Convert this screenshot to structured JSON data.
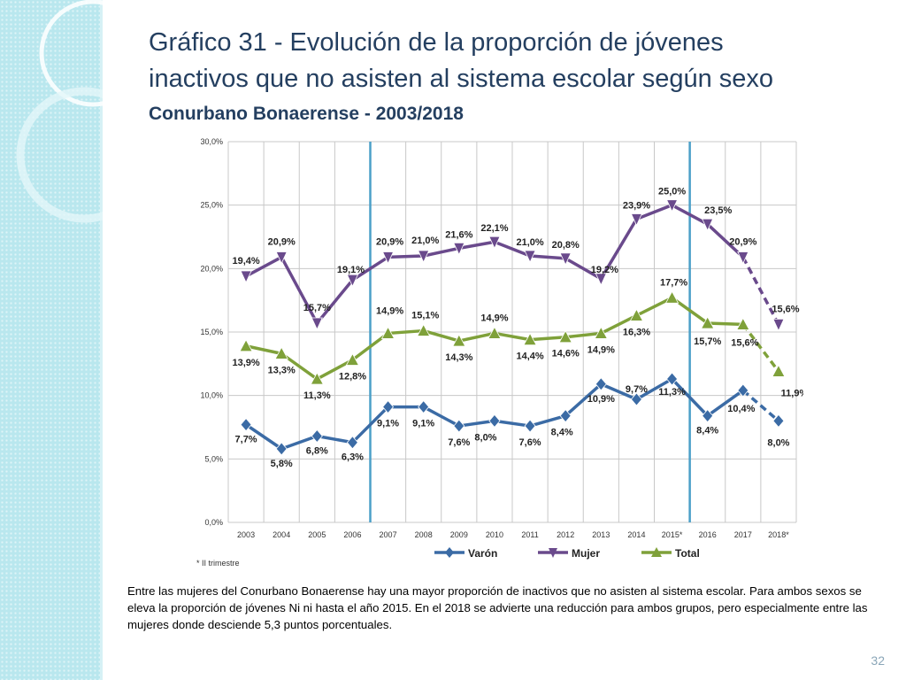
{
  "slide": {
    "title_line1": "Gráfico 31 - Evolución de la proporción de jóvenes",
    "title_line2": "inactivos que no asisten al sistema escolar según sexo",
    "subtitle": "Conurbano Bonaerense - 2003/2018",
    "footnote": "* II trimestre",
    "caption": "Entre las mujeres del Conurbano Bonaerense hay una mayor proporción de inactivos que no asisten al sistema escolar. Para ambos sexos se eleva la proporción de jóvenes Ni ni hasta el año 2015. En el 2018 se advierte una reducción para ambos grupos, pero especialmente entre las mujeres donde desciende 5,3 puntos porcentuales.",
    "page_number": "32"
  },
  "colors": {
    "title": "#243f60",
    "varon": "#3b6ba5",
    "mujer": "#6a4a8c",
    "total": "#7fa13a",
    "divider": "#4a9fc8",
    "grid": "#c8c8c8",
    "sidebar": "#b9e7ee"
  },
  "chart_data": {
    "type": "line",
    "title": "",
    "xlabel": "",
    "ylabel": "",
    "categories": [
      "2003",
      "2004",
      "2005",
      "2006",
      "2007",
      "2008",
      "2009",
      "2010",
      "2011",
      "2012",
      "2013",
      "2014",
      "2015*",
      "2016",
      "2017",
      "2018*"
    ],
    "y_ticks": [
      "0,0%",
      "5,0%",
      "10,0%",
      "15,0%",
      "20,0%",
      "25,0%",
      "30,0%"
    ],
    "ylim": [
      0,
      30
    ],
    "grid": true,
    "legend_position": "bottom",
    "vertical_markers_after": [
      "2006",
      "2015*"
    ],
    "dashed_last_segment": true,
    "series": [
      {
        "name": "Varón",
        "marker": "diamond",
        "color_key": "varon",
        "values": [
          7.7,
          5.8,
          6.8,
          6.3,
          9.1,
          9.1,
          7.6,
          8.0,
          7.6,
          8.4,
          10.9,
          9.7,
          11.3,
          8.4,
          10.4,
          8.0
        ],
        "labels": [
          "7,7%",
          "5,8%",
          "6,8%",
          "6,3%",
          "9,1%",
          "9,1%",
          "7,6%",
          "8,0%",
          "7,6%",
          "8,4%",
          "10,9%",
          "9,7%",
          "11,3%",
          "8,4%",
          "10,4%",
          "8,0%"
        ]
      },
      {
        "name": "Mujer",
        "marker": "triangle-down",
        "color_key": "mujer",
        "values": [
          19.4,
          20.9,
          15.7,
          19.1,
          20.9,
          21.0,
          21.6,
          22.1,
          21.0,
          20.8,
          19.2,
          23.9,
          25.0,
          23.5,
          20.9,
          15.6
        ],
        "labels": [
          "19,4%",
          "20,9%",
          "15,7%",
          "19,1%",
          "20,9%",
          "21,0%",
          "21,6%",
          "22,1%",
          "21,0%",
          "20,8%",
          "19,2%",
          "23,9%",
          "25,0%",
          "23,5%",
          "20,9%",
          "15,6%"
        ]
      },
      {
        "name": "Total",
        "marker": "triangle-up",
        "color_key": "total",
        "values": [
          13.9,
          13.3,
          11.3,
          12.8,
          14.9,
          15.1,
          14.3,
          14.9,
          14.4,
          14.6,
          14.9,
          16.3,
          17.7,
          15.7,
          15.6,
          11.9
        ],
        "labels": [
          "13,9%",
          "13,3%",
          "11,3%",
          "12,8%",
          "14,9%",
          "15,1%",
          "14,3%",
          "14,9%",
          "14,4%",
          "14,6%",
          "14,9%",
          "16,3%",
          "17,7%",
          "15,7%",
          "15,6%",
          "11,9%"
        ]
      }
    ]
  }
}
